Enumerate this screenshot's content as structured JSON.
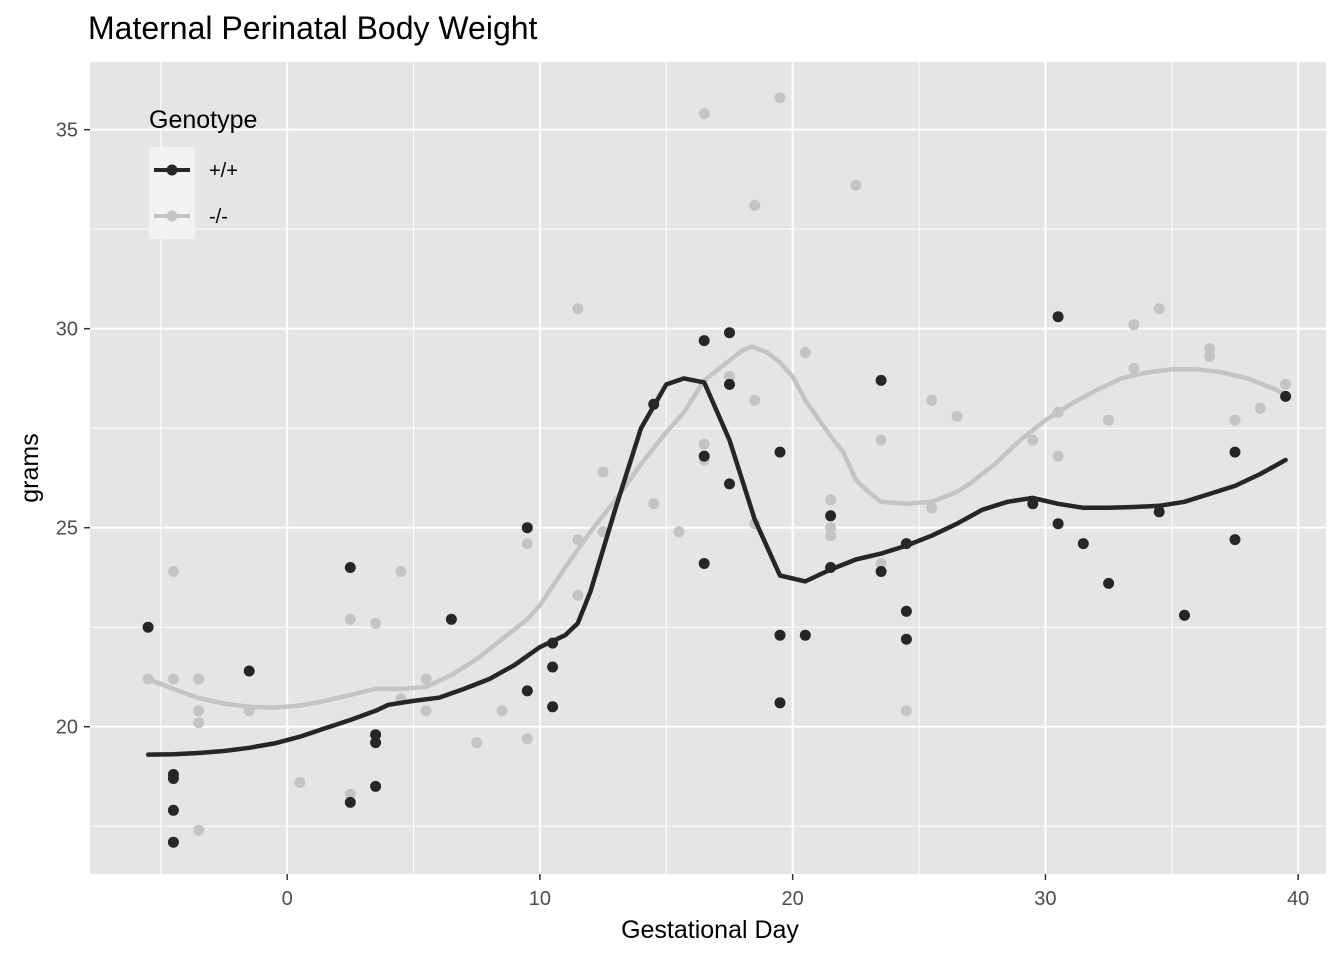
{
  "chart_data": {
    "type": "scatter",
    "title": "Maternal Perinatal Body Weight",
    "xlabel": "Gestational Day",
    "ylabel": "grams",
    "xlim": [
      -7.8,
      41.1
    ],
    "ylim": [
      16.3,
      36.7
    ],
    "x_ticks": [
      0,
      10,
      20,
      30,
      40
    ],
    "y_ticks": [
      20,
      25,
      30,
      35
    ],
    "x_tick_labels": [
      "0",
      "10",
      "20",
      "30",
      "40"
    ],
    "y_tick_labels": [
      "20",
      "25",
      "30",
      "35"
    ],
    "grid": true,
    "legend": {
      "title": "Genotype",
      "position": "top-left-inside"
    },
    "series": [
      {
        "name": "+/+",
        "color": "#262626",
        "points": [
          [
            -5.5,
            22.5
          ],
          [
            -4.5,
            18.8
          ],
          [
            -4.5,
            18.7
          ],
          [
            -4.5,
            17.9
          ],
          [
            -4.5,
            17.1
          ],
          [
            -1.5,
            21.4
          ],
          [
            2.5,
            24.0
          ],
          [
            2.5,
            18.1
          ],
          [
            3.5,
            19.8
          ],
          [
            3.5,
            19.6
          ],
          [
            3.5,
            18.5
          ],
          [
            6.5,
            22.7
          ],
          [
            9.5,
            25.0
          ],
          [
            9.5,
            20.9
          ],
          [
            10.5,
            22.1
          ],
          [
            10.5,
            21.5
          ],
          [
            10.5,
            20.5
          ],
          [
            14.5,
            28.1
          ],
          [
            16.5,
            29.7
          ],
          [
            16.5,
            26.8
          ],
          [
            16.5,
            24.1
          ],
          [
            17.5,
            29.9
          ],
          [
            17.5,
            28.6
          ],
          [
            17.5,
            26.1
          ],
          [
            19.5,
            26.9
          ],
          [
            19.5,
            22.3
          ],
          [
            19.5,
            20.6
          ],
          [
            20.5,
            22.3
          ],
          [
            21.5,
            25.3
          ],
          [
            21.5,
            24.0
          ],
          [
            23.5,
            28.7
          ],
          [
            23.5,
            23.9
          ],
          [
            24.5,
            24.6
          ],
          [
            24.5,
            22.9
          ],
          [
            24.5,
            22.2
          ],
          [
            29.5,
            25.6
          ],
          [
            30.5,
            30.3
          ],
          [
            30.5,
            25.1
          ],
          [
            31.5,
            24.6
          ],
          [
            32.5,
            23.6
          ],
          [
            34.5,
            25.4
          ],
          [
            35.5,
            22.8
          ],
          [
            37.5,
            26.9
          ],
          [
            37.5,
            24.7
          ],
          [
            39.5,
            28.3
          ]
        ],
        "smooth": [
          [
            -5.5,
            19.3
          ],
          [
            -4.5,
            19.31
          ],
          [
            -3.5,
            19.34
          ],
          [
            -2.5,
            19.39
          ],
          [
            -1.5,
            19.47
          ],
          [
            -0.5,
            19.58
          ],
          [
            0.5,
            19.75
          ],
          [
            1.5,
            19.96
          ],
          [
            2.5,
            20.17
          ],
          [
            3.5,
            20.4
          ],
          [
            4.0,
            20.55
          ],
          [
            5.0,
            20.65
          ],
          [
            6.0,
            20.73
          ],
          [
            7.0,
            20.95
          ],
          [
            8.0,
            21.2
          ],
          [
            9.0,
            21.55
          ],
          [
            10.0,
            22.0
          ],
          [
            11.0,
            22.3
          ],
          [
            11.5,
            22.6
          ],
          [
            12.0,
            23.4
          ],
          [
            13.0,
            25.5
          ],
          [
            14.0,
            27.5
          ],
          [
            15.0,
            28.6
          ],
          [
            15.7,
            28.75
          ],
          [
            16.5,
            28.65
          ],
          [
            17.5,
            27.2
          ],
          [
            18.5,
            25.2
          ],
          [
            19.5,
            23.8
          ],
          [
            20.5,
            23.65
          ],
          [
            21.5,
            23.95
          ],
          [
            22.5,
            24.2
          ],
          [
            23.5,
            24.35
          ],
          [
            24.5,
            24.55
          ],
          [
            25.5,
            24.8
          ],
          [
            26.5,
            25.1
          ],
          [
            27.5,
            25.45
          ],
          [
            28.5,
            25.65
          ],
          [
            29.5,
            25.75
          ],
          [
            30.5,
            25.6
          ],
          [
            31.5,
            25.5
          ],
          [
            32.5,
            25.5
          ],
          [
            33.5,
            25.52
          ],
          [
            34.5,
            25.55
          ],
          [
            35.5,
            25.65
          ],
          [
            36.5,
            25.85
          ],
          [
            37.5,
            26.05
          ],
          [
            38.5,
            26.35
          ],
          [
            39.5,
            26.7
          ]
        ]
      },
      {
        "name": "-/-",
        "color": "#c4c4c4",
        "points": [
          [
            -5.5,
            21.2
          ],
          [
            -4.5,
            23.9
          ],
          [
            -4.5,
            21.2
          ],
          [
            -3.5,
            21.2
          ],
          [
            -3.5,
            20.4
          ],
          [
            -3.5,
            20.1
          ],
          [
            -3.5,
            17.4
          ],
          [
            -1.5,
            20.4
          ],
          [
            0.5,
            18.6
          ],
          [
            2.5,
            22.7
          ],
          [
            2.5,
            18.3
          ],
          [
            3.5,
            22.6
          ],
          [
            4.5,
            23.9
          ],
          [
            4.5,
            20.7
          ],
          [
            5.5,
            21.2
          ],
          [
            5.5,
            20.4
          ],
          [
            7.5,
            19.6
          ],
          [
            8.5,
            20.4
          ],
          [
            9.5,
            24.6
          ],
          [
            9.5,
            19.7
          ],
          [
            11.5,
            30.5
          ],
          [
            11.5,
            24.7
          ],
          [
            11.5,
            23.3
          ],
          [
            12.5,
            26.4
          ],
          [
            12.5,
            24.9
          ],
          [
            14.5,
            25.6
          ],
          [
            15.5,
            24.9
          ],
          [
            16.5,
            35.4
          ],
          [
            16.5,
            27.1
          ],
          [
            16.5,
            26.7
          ],
          [
            17.5,
            28.8
          ],
          [
            18.5,
            33.1
          ],
          [
            18.5,
            28.2
          ],
          [
            18.5,
            25.1
          ],
          [
            19.5,
            35.8
          ],
          [
            20.5,
            29.4
          ],
          [
            21.5,
            25.7
          ],
          [
            21.5,
            25.0
          ],
          [
            21.5,
            24.8
          ],
          [
            22.5,
            33.6
          ],
          [
            23.5,
            27.2
          ],
          [
            23.5,
            24.1
          ],
          [
            24.5,
            20.4
          ],
          [
            25.5,
            28.2
          ],
          [
            25.5,
            25.5
          ],
          [
            26.5,
            27.8
          ],
          [
            29.5,
            27.2
          ],
          [
            30.5,
            27.9
          ],
          [
            30.5,
            26.8
          ],
          [
            32.5,
            27.7
          ],
          [
            33.5,
            30.1
          ],
          [
            33.5,
            29.0
          ],
          [
            34.5,
            30.5
          ],
          [
            36.5,
            29.5
          ],
          [
            36.5,
            29.3
          ],
          [
            37.5,
            27.7
          ],
          [
            38.5,
            28.0
          ],
          [
            39.5,
            28.6
          ]
        ],
        "smooth": [
          [
            -5.5,
            21.2
          ],
          [
            -4.5,
            20.95
          ],
          [
            -3.5,
            20.72
          ],
          [
            -2.5,
            20.58
          ],
          [
            -1.5,
            20.5
          ],
          [
            -0.5,
            20.48
          ],
          [
            0.5,
            20.53
          ],
          [
            1.5,
            20.65
          ],
          [
            2.5,
            20.8
          ],
          [
            3.5,
            20.95
          ],
          [
            4.5,
            20.95
          ],
          [
            5.5,
            21.0
          ],
          [
            6.5,
            21.3
          ],
          [
            7.5,
            21.7
          ],
          [
            8.5,
            22.2
          ],
          [
            9.5,
            22.7
          ],
          [
            10.0,
            23.05
          ],
          [
            11.0,
            24.0
          ],
          [
            12.0,
            24.9
          ],
          [
            13.0,
            25.7
          ],
          [
            14.0,
            26.6
          ],
          [
            15.0,
            27.4
          ],
          [
            15.7,
            27.9
          ],
          [
            16.5,
            28.7
          ],
          [
            17.5,
            29.2
          ],
          [
            18.0,
            29.45
          ],
          [
            18.4,
            29.55
          ],
          [
            19.0,
            29.4
          ],
          [
            19.5,
            29.15
          ],
          [
            20.0,
            28.8
          ],
          [
            20.5,
            28.2
          ],
          [
            21.5,
            27.3
          ],
          [
            22.0,
            26.9
          ],
          [
            22.5,
            26.2
          ],
          [
            23.0,
            25.9
          ],
          [
            23.5,
            25.65
          ],
          [
            24.5,
            25.6
          ],
          [
            25.5,
            25.65
          ],
          [
            26.5,
            25.9
          ],
          [
            27.0,
            26.1
          ],
          [
            28.0,
            26.6
          ],
          [
            29.0,
            27.2
          ],
          [
            30.0,
            27.7
          ],
          [
            31.0,
            28.1
          ],
          [
            32.0,
            28.45
          ],
          [
            33.0,
            28.75
          ],
          [
            34.0,
            28.9
          ],
          [
            35.0,
            28.98
          ],
          [
            36.0,
            28.98
          ],
          [
            37.0,
            28.9
          ],
          [
            38.0,
            28.75
          ],
          [
            39.0,
            28.5
          ],
          [
            39.5,
            28.35
          ]
        ]
      }
    ]
  }
}
